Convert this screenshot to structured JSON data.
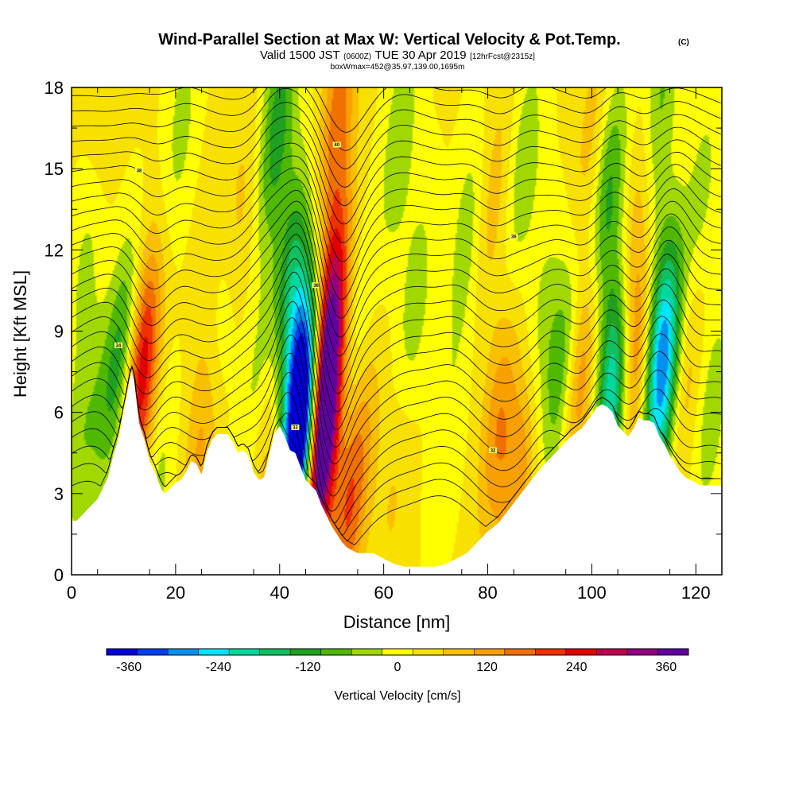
{
  "chart_data": {
    "type": "heatmap",
    "title": "Wind-Parallel Section at Max W: Vertical Velocity & Pot.Temp.",
    "title_mark": "(C)",
    "subtitle": {
      "valid": "Valid 1500 JST",
      "utc": "(0600Z)",
      "date": "TUE 30 Apr 2019",
      "fcst": "[12hrFcst@2315z]"
    },
    "box_info": "boxWmax=452@35.97,139.00,1695m",
    "xlabel": "Distance [nm]",
    "ylabel": "Height [Kft MSL]",
    "xlim": [
      0,
      125
    ],
    "ylim": [
      0,
      18
    ],
    "x_ticks": [
      0,
      20,
      40,
      60,
      80,
      100,
      120
    ],
    "y_ticks": [
      0,
      3,
      6,
      9,
      12,
      15,
      18
    ],
    "x_tick_labels": [
      "0",
      "20",
      "40",
      "60",
      "80",
      "100",
      "120"
    ],
    "y_tick_labels": [
      "0",
      "3",
      "6",
      "9",
      "12",
      "15",
      "18"
    ],
    "terrain": {
      "x": [
        0,
        1,
        3,
        5,
        6,
        7,
        8,
        9,
        10,
        11,
        11.5,
        12,
        13,
        14,
        15,
        16,
        17,
        17.5,
        18,
        19,
        20,
        21,
        22,
        23,
        24,
        25,
        26,
        27,
        28,
        30,
        31,
        32,
        33,
        34,
        35,
        36,
        37,
        38,
        39,
        40,
        41,
        42,
        43,
        44,
        45,
        46,
        47,
        48,
        49,
        50,
        51,
        52,
        53,
        54,
        55,
        56,
        57,
        58,
        59,
        60,
        62,
        64,
        66,
        68,
        70,
        72,
        74,
        76,
        78,
        80,
        82,
        84,
        86,
        88,
        90,
        92,
        94,
        96,
        98,
        100,
        101,
        102,
        103,
        104,
        105,
        106,
        107,
        108,
        109,
        110,
        111,
        112,
        113,
        114,
        115,
        116,
        117,
        118,
        119,
        120,
        121,
        122,
        123,
        124,
        125
      ],
      "height_kft": [
        2.0,
        2.0,
        2.4,
        2.8,
        3.2,
        3.6,
        4.4,
        5.0,
        6.0,
        7.0,
        7.5,
        7.2,
        5.6,
        5.0,
        4.2,
        3.8,
        3.3,
        3.1,
        3.0,
        3.2,
        3.4,
        3.5,
        3.8,
        4.2,
        4.1,
        3.7,
        4.5,
        5.0,
        5.2,
        5.2,
        4.9,
        4.5,
        4.6,
        4.4,
        3.8,
        3.5,
        3.6,
        4.4,
        5.2,
        5.5,
        5.1,
        4.6,
        4.5,
        4.0,
        3.5,
        3.3,
        3.1,
        2.6,
        2.2,
        1.8,
        1.5,
        1.2,
        1.0,
        0.9,
        0.8,
        0.8,
        0.8,
        0.8,
        0.7,
        0.6,
        0.4,
        0.3,
        0.3,
        0.3,
        0.3,
        0.4,
        0.6,
        0.8,
        1.2,
        1.6,
        1.9,
        2.4,
        2.9,
        3.4,
        3.9,
        4.3,
        4.7,
        5.1,
        5.4,
        5.9,
        6.2,
        6.3,
        6.2,
        6.0,
        5.5,
        5.3,
        5.1,
        5.4,
        5.8,
        5.7,
        5.7,
        5.6,
        5.1,
        4.8,
        4.4,
        4.1,
        3.8,
        3.6,
        3.5,
        3.4,
        3.3,
        3.3,
        3.3,
        3.3,
        3.3
      ]
    },
    "vertical_velocity_features": [
      {
        "x": 10.5,
        "z": 8.5,
        "w": -150
      },
      {
        "x": 13,
        "z": 8.5,
        "w": 160
      },
      {
        "x": 13.5,
        "z": 6.5,
        "w": 130
      },
      {
        "x": 16.5,
        "z": 3.5,
        "w": -60
      },
      {
        "x": 7,
        "z": 6.5,
        "w": -70
      },
      {
        "x": 25,
        "z": 4.8,
        "w": 90
      },
      {
        "x": 21,
        "z": 16.5,
        "w": -60
      },
      {
        "x": 26,
        "z": 11.5,
        "w": 20
      },
      {
        "x": 29,
        "z": 9.5,
        "w": -60
      },
      {
        "x": 32,
        "z": 13.0,
        "w": 60
      },
      {
        "x": 36,
        "z": 6.5,
        "w": -90
      },
      {
        "x": 37.5,
        "z": 5.5,
        "w": 110
      },
      {
        "x": 39.5,
        "z": 16.5,
        "w": -150
      },
      {
        "x": 42,
        "z": 11.0,
        "w": -150
      },
      {
        "x": 43.5,
        "z": 7.5,
        "w": -240
      },
      {
        "x": 44.5,
        "z": 5.5,
        "w": -300
      },
      {
        "x": 45.5,
        "z": 4.5,
        "w": -360
      },
      {
        "x": 47,
        "z": 3.8,
        "w": 330
      },
      {
        "x": 48,
        "z": 5.8,
        "w": 280
      },
      {
        "x": 48.5,
        "z": 8.0,
        "w": 200
      },
      {
        "x": 50.5,
        "z": 11.0,
        "w": 120
      },
      {
        "x": 51,
        "z": 17.0,
        "w": 130
      },
      {
        "x": 53,
        "z": 2.2,
        "w": 130
      },
      {
        "x": 56,
        "z": 5.0,
        "w": 60
      },
      {
        "x": 55,
        "z": 9.0,
        "w": -50
      },
      {
        "x": 63,
        "z": 16.0,
        "w": -80
      },
      {
        "x": 66,
        "z": 10.0,
        "w": -70
      },
      {
        "x": 62,
        "z": 3.0,
        "w": 40
      },
      {
        "x": 72,
        "z": 5.0,
        "w": -40
      },
      {
        "x": 76,
        "z": 12.5,
        "w": -70
      },
      {
        "x": 81,
        "z": 14.0,
        "w": 60
      },
      {
        "x": 82,
        "z": 5.5,
        "w": 110
      },
      {
        "x": 86,
        "z": 3.8,
        "w": 110
      },
      {
        "x": 87,
        "z": 15.0,
        "w": -80
      },
      {
        "x": 90,
        "z": 9.0,
        "w": -60
      },
      {
        "x": 94,
        "z": 7.5,
        "w": -120
      },
      {
        "x": 98,
        "z": 7.5,
        "w": 120
      },
      {
        "x": 100,
        "z": 16.0,
        "w": 60
      },
      {
        "x": 103,
        "z": 14.0,
        "w": -140
      },
      {
        "x": 104,
        "z": 8.5,
        "w": -130
      },
      {
        "x": 105,
        "z": 6.8,
        "w": -260
      },
      {
        "x": 107,
        "z": 9.5,
        "w": 180
      },
      {
        "x": 108.5,
        "z": 7.5,
        "w": 170
      },
      {
        "x": 109.5,
        "z": 14.5,
        "w": 50
      },
      {
        "x": 110,
        "z": 11.0,
        "w": -60
      },
      {
        "x": 113,
        "z": 8.5,
        "w": -240
      },
      {
        "x": 114.5,
        "z": 6.5,
        "w": -200
      },
      {
        "x": 117,
        "z": 7.0,
        "w": 120
      },
      {
        "x": 113,
        "z": 17.5,
        "w": -100
      },
      {
        "x": 121,
        "z": 14.0,
        "w": -60
      },
      {
        "x": 123,
        "z": 6.0,
        "w": -70
      },
      {
        "x": 3,
        "z": 12.0,
        "w": -60
      },
      {
        "x": 2,
        "z": 5.0,
        "w": -70
      },
      {
        "x": 6,
        "z": 16.5,
        "w": 40
      }
    ],
    "potential_temperature_contours": {
      "count": 27,
      "base_height_kft": 2.6,
      "spacing_kft": 0.58,
      "labels": [
        "32",
        "34",
        "36",
        "38",
        "40"
      ]
    },
    "colorbar": {
      "label": "Vertical Velocity [cm/s]",
      "tick_values": [
        -360,
        -240,
        -120,
        0,
        120,
        240,
        360
      ],
      "tick_labels": [
        "-360",
        "-240",
        "-120",
        "0",
        "120",
        "240",
        "360"
      ],
      "range": [
        -390,
        390
      ],
      "step": 40,
      "colors": [
        "#0000d8",
        "#0040f0",
        "#0090f0",
        "#00e4ff",
        "#00d8a0",
        "#10c060",
        "#20a020",
        "#50b800",
        "#a0d800",
        "#ffff00",
        "#f8e000",
        "#f8c000",
        "#f8a000",
        "#f07000",
        "#f03000",
        "#e00000",
        "#c00050",
        "#900080",
        "#6000a0"
      ]
    }
  }
}
